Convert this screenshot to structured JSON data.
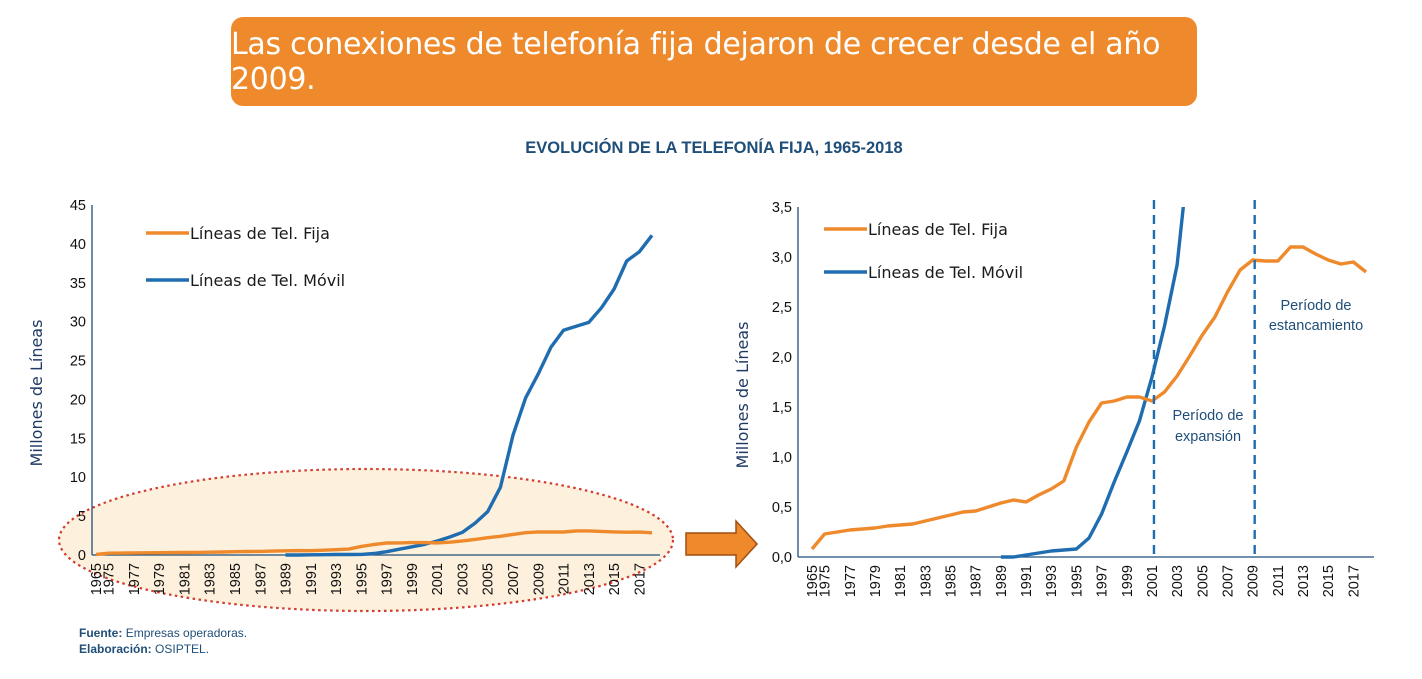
{
  "banner": {
    "text": "Las conexiones de telefonía fija dejaron de crecer desde el año 2009."
  },
  "title": "EVOLUCIÓN DE LA TELEFONÍA FIJA, 1965-2018",
  "source": {
    "fuente_label": "Fuente:",
    "fuente_value": "Empresas operadoras.",
    "elab_label": "Elaboración:",
    "elab_value": "OSIPTEL."
  },
  "colors": {
    "fija": "#ef8a2c",
    "movil": "#1f6db0",
    "banner": "#ef8a2c",
    "title": "#1f4e79"
  },
  "chart_data": [
    {
      "type": "line",
      "ylabel": "Millones de Líneas",
      "ylim": [
        0,
        45
      ],
      "yticks": [
        "0",
        "5",
        "10",
        "15",
        "20",
        "25",
        "30",
        "35",
        "40",
        "45"
      ],
      "xtick_labels": [
        "1965",
        "1975",
        "1977",
        "1979",
        "1981",
        "1983",
        "1985",
        "1987",
        "1989",
        "1991",
        "1993",
        "1995",
        "1997",
        "1999",
        "2001",
        "2003",
        "2005",
        "2007",
        "2009",
        "2011",
        "2013",
        "2015",
        "2017"
      ],
      "x": [
        1965,
        1975,
        1976,
        1977,
        1978,
        1979,
        1980,
        1981,
        1982,
        1983,
        1984,
        1985,
        1986,
        1987,
        1988,
        1989,
        1990,
        1991,
        1992,
        1993,
        1994,
        1995,
        1996,
        1997,
        1998,
        1999,
        2000,
        2001,
        2002,
        2003,
        2004,
        2005,
        2006,
        2007,
        2008,
        2009,
        2010,
        2011,
        2012,
        2013,
        2014,
        2015,
        2016,
        2017,
        2018
      ],
      "series": [
        {
          "name": "Líneas de Tel. Fija",
          "values": [
            0.08,
            0.23,
            0.25,
            0.27,
            0.28,
            0.29,
            0.31,
            0.32,
            0.33,
            0.36,
            0.39,
            0.42,
            0.45,
            0.46,
            0.5,
            0.54,
            0.57,
            0.55,
            0.62,
            0.68,
            0.76,
            1.1,
            1.35,
            1.54,
            1.56,
            1.6,
            1.6,
            1.56,
            1.65,
            1.81,
            2.01,
            2.22,
            2.4,
            2.65,
            2.87,
            2.97,
            2.96,
            2.96,
            3.1,
            3.1,
            3.03,
            2.97,
            2.93,
            2.95,
            2.85
          ]
        },
        {
          "name": "Líneas de Tel. Móvil",
          "values": [
            null,
            null,
            null,
            null,
            null,
            null,
            null,
            null,
            null,
            null,
            null,
            null,
            null,
            null,
            null,
            0.0,
            0.0,
            0.02,
            0.04,
            0.06,
            0.07,
            0.08,
            0.19,
            0.43,
            0.75,
            1.05,
            1.36,
            1.8,
            2.31,
            2.92,
            4.1,
            5.58,
            8.7,
            15.4,
            20.2,
            23.3,
            26.7,
            28.9,
            29.4,
            29.9,
            31.8,
            34.2,
            37.8,
            39,
            41.1
          ]
        }
      ]
    },
    {
      "type": "line",
      "ylabel": "Millones de Líneas",
      "ylim": [
        0,
        3.5
      ],
      "yticks": [
        "0,0",
        "0,5",
        "1,0",
        "1,5",
        "2,0",
        "2,5",
        "3,0",
        "3,5"
      ],
      "xtick_labels": [
        "1965",
        "1975",
        "1977",
        "1979",
        "1981",
        "1983",
        "1985",
        "1987",
        "1989",
        "1991",
        "1993",
        "1995",
        "1997",
        "1999",
        "2001",
        "2003",
        "2005",
        "2007",
        "2009",
        "2011",
        "2013",
        "2015",
        "2017"
      ],
      "series_ref": "same as chart 1, clipped at 3.5",
      "vlines": [
        2001,
        2009
      ],
      "annotations": [
        {
          "lines": [
            "Período de",
            "expansión"
          ]
        },
        {
          "lines": [
            "Período de",
            "estancamiento"
          ]
        }
      ]
    }
  ]
}
